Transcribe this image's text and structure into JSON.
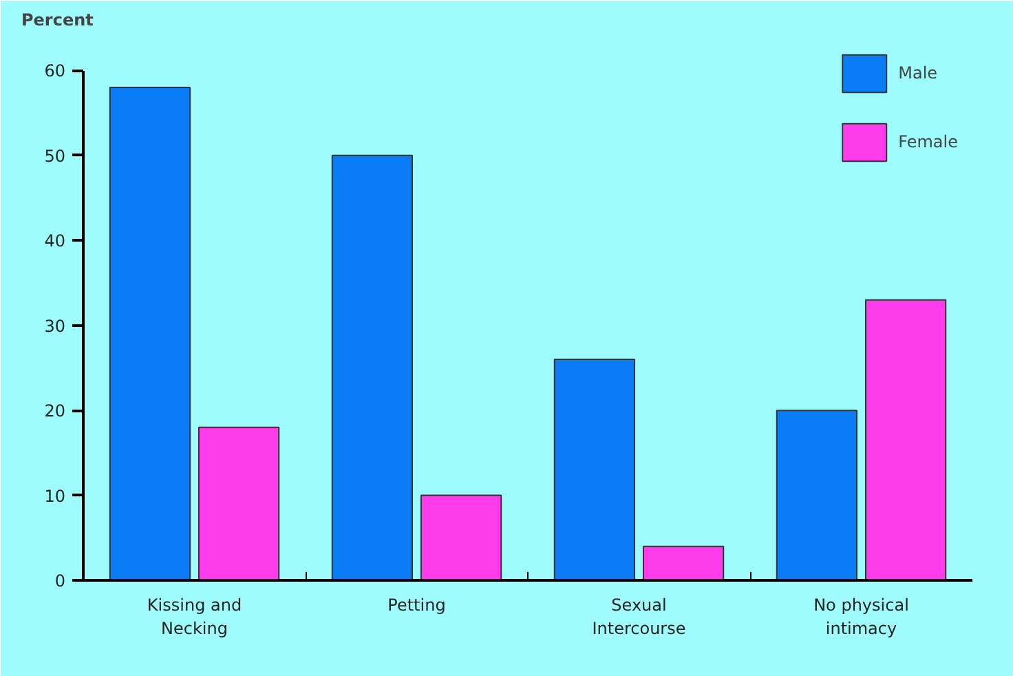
{
  "chart_data": {
    "type": "bar",
    "ylabel": "Percent",
    "categories": [
      "Kissing and\nNecking",
      "Petting",
      "Sexual\nIntercourse",
      "No physical\nintimacy"
    ],
    "series": [
      {
        "name": "Male",
        "color": "#0a7cf5",
        "values": [
          58,
          50,
          26,
          20
        ]
      },
      {
        "name": "Female",
        "color": "#ff3cec",
        "values": [
          18,
          10,
          4,
          33
        ]
      }
    ],
    "ylim": [
      0,
      64
    ],
    "yticks": [
      0,
      10,
      20,
      30,
      40,
      50,
      60
    ],
    "grid": false,
    "legend": "top right"
  }
}
